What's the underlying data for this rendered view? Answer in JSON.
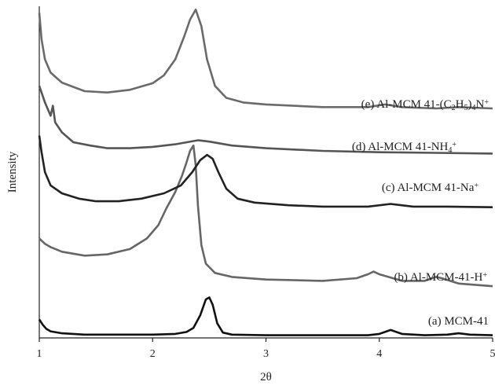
{
  "chart_data": {
    "type": "line",
    "xlabel": "2θ",
    "ylabel": "Intensity",
    "xlim": [
      1,
      5
    ],
    "x_ticks": [
      "1",
      "2",
      "3",
      "4",
      "5"
    ],
    "y_ticks_labeled": false,
    "grid": false,
    "legend": "inline labels next to each curve, right side",
    "series": [
      {
        "label_parts": [
          {
            "t": "(a) MCM-41"
          }
        ],
        "color": "#111111",
        "points": [
          [
            1.0,
            0.28
          ],
          [
            1.03,
            0.2
          ],
          [
            1.06,
            0.14
          ],
          [
            1.1,
            0.1
          ],
          [
            1.2,
            0.07
          ],
          [
            1.4,
            0.05
          ],
          [
            1.7,
            0.05
          ],
          [
            2.0,
            0.05
          ],
          [
            2.2,
            0.06
          ],
          [
            2.3,
            0.09
          ],
          [
            2.36,
            0.15
          ],
          [
            2.42,
            0.34
          ],
          [
            2.47,
            0.58
          ],
          [
            2.5,
            0.61
          ],
          [
            2.53,
            0.5
          ],
          [
            2.57,
            0.22
          ],
          [
            2.62,
            0.08
          ],
          [
            2.7,
            0.05
          ],
          [
            3.0,
            0.04
          ],
          [
            3.5,
            0.04
          ],
          [
            3.9,
            0.04
          ],
          [
            4.0,
            0.06
          ],
          [
            4.1,
            0.12
          ],
          [
            4.2,
            0.06
          ],
          [
            4.4,
            0.04
          ],
          [
            4.6,
            0.05
          ],
          [
            4.7,
            0.07
          ],
          [
            4.8,
            0.05
          ],
          [
            5.0,
            0.04
          ]
        ]
      },
      {
        "label_parts": [
          {
            "t": "(b) Al-MCM-41-H"
          },
          {
            "t": "+",
            "sup": true
          }
        ],
        "color": "#666666",
        "points": [
          [
            1.0,
            1.5
          ],
          [
            1.05,
            1.42
          ],
          [
            1.1,
            1.37
          ],
          [
            1.2,
            1.3
          ],
          [
            1.4,
            1.24
          ],
          [
            1.6,
            1.26
          ],
          [
            1.8,
            1.34
          ],
          [
            1.95,
            1.5
          ],
          [
            2.05,
            1.7
          ],
          [
            2.12,
            1.95
          ],
          [
            2.2,
            2.2
          ],
          [
            2.26,
            2.45
          ],
          [
            2.3,
            2.65
          ],
          [
            2.33,
            2.82
          ],
          [
            2.36,
            2.9
          ],
          [
            2.38,
            2.6
          ],
          [
            2.4,
            2.0
          ],
          [
            2.43,
            1.4
          ],
          [
            2.47,
            1.12
          ],
          [
            2.55,
            0.98
          ],
          [
            2.7,
            0.92
          ],
          [
            3.0,
            0.88
          ],
          [
            3.5,
            0.86
          ],
          [
            3.8,
            0.9
          ],
          [
            3.9,
            0.96
          ],
          [
            3.95,
            1.0
          ],
          [
            4.0,
            0.96
          ],
          [
            4.2,
            0.86
          ],
          [
            4.4,
            0.86
          ],
          [
            4.5,
            0.92
          ],
          [
            4.55,
            0.9
          ],
          [
            4.7,
            0.82
          ],
          [
            5.0,
            0.78
          ]
        ]
      },
      {
        "label_parts": [
          {
            "t": "(c) Al-MCM 41-Na"
          },
          {
            "t": "+",
            "sup": true
          }
        ],
        "color": "#222222",
        "points": [
          [
            1.0,
            3.05
          ],
          [
            1.02,
            2.8
          ],
          [
            1.05,
            2.5
          ],
          [
            1.1,
            2.3
          ],
          [
            1.2,
            2.18
          ],
          [
            1.35,
            2.1
          ],
          [
            1.5,
            2.06
          ],
          [
            1.7,
            2.06
          ],
          [
            1.9,
            2.1
          ],
          [
            2.1,
            2.18
          ],
          [
            2.25,
            2.3
          ],
          [
            2.35,
            2.5
          ],
          [
            2.42,
            2.68
          ],
          [
            2.48,
            2.76
          ],
          [
            2.53,
            2.7
          ],
          [
            2.58,
            2.5
          ],
          [
            2.65,
            2.25
          ],
          [
            2.75,
            2.1
          ],
          [
            2.9,
            2.04
          ],
          [
            3.2,
            2.0
          ],
          [
            3.5,
            1.98
          ],
          [
            3.9,
            1.98
          ],
          [
            4.1,
            2.02
          ],
          [
            4.3,
            1.98
          ],
          [
            4.6,
            1.98
          ],
          [
            5.0,
            1.97
          ]
        ]
      },
      {
        "label_parts": [
          {
            "t": "(d) Al-MCM 41-NH"
          },
          {
            "t": "4",
            "sub": true
          },
          {
            "t": "+",
            "sup": true
          }
        ],
        "color": "#555555",
        "points": [
          [
            1.0,
            3.8
          ],
          [
            1.05,
            3.55
          ],
          [
            1.1,
            3.35
          ],
          [
            1.12,
            3.5
          ],
          [
            1.14,
            3.25
          ],
          [
            1.2,
            3.1
          ],
          [
            1.3,
            2.95
          ],
          [
            1.45,
            2.9
          ],
          [
            1.6,
            2.86
          ],
          [
            1.8,
            2.86
          ],
          [
            2.0,
            2.88
          ],
          [
            2.2,
            2.92
          ],
          [
            2.4,
            2.98
          ],
          [
            2.5,
            2.96
          ],
          [
            2.7,
            2.9
          ],
          [
            3.0,
            2.86
          ],
          [
            3.5,
            2.82
          ],
          [
            4.0,
            2.8
          ],
          [
            4.5,
            2.79
          ],
          [
            5.0,
            2.78
          ]
        ]
      },
      {
        "label_parts": [
          {
            "t": "(e) Al-MCM 41-(C"
          },
          {
            "t": "2",
            "sub": true
          },
          {
            "t": "H"
          },
          {
            "t": "5",
            "sub": true
          },
          {
            "t": ")"
          },
          {
            "t": "4",
            "sub": true
          },
          {
            "t": "N"
          },
          {
            "t": "+",
            "sup": true
          }
        ],
        "color": "#6a6a6a",
        "points": [
          [
            1.0,
            4.9
          ],
          [
            1.02,
            4.5
          ],
          [
            1.05,
            4.2
          ],
          [
            1.1,
            4.0
          ],
          [
            1.2,
            3.85
          ],
          [
            1.4,
            3.72
          ],
          [
            1.6,
            3.7
          ],
          [
            1.8,
            3.74
          ],
          [
            2.0,
            3.84
          ],
          [
            2.1,
            3.96
          ],
          [
            2.2,
            4.2
          ],
          [
            2.28,
            4.55
          ],
          [
            2.33,
            4.8
          ],
          [
            2.38,
            4.95
          ],
          [
            2.43,
            4.7
          ],
          [
            2.48,
            4.2
          ],
          [
            2.55,
            3.8
          ],
          [
            2.65,
            3.62
          ],
          [
            2.8,
            3.55
          ],
          [
            3.0,
            3.52
          ],
          [
            3.5,
            3.48
          ],
          [
            3.9,
            3.48
          ],
          [
            4.05,
            3.52
          ],
          [
            4.2,
            3.48
          ],
          [
            4.5,
            3.46
          ],
          [
            4.7,
            3.48
          ],
          [
            5.0,
            3.46
          ]
        ]
      }
    ]
  }
}
